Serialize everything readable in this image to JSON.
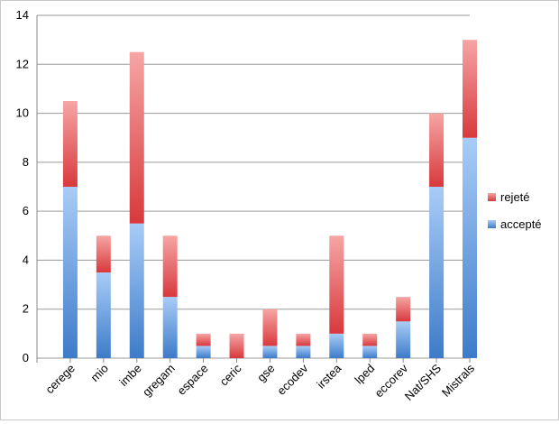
{
  "chart_data": {
    "type": "bar",
    "stacked": true,
    "title": "",
    "xlabel": "",
    "ylabel": "",
    "ylim": [
      0,
      14
    ],
    "yticks": [
      0,
      2,
      4,
      6,
      8,
      10,
      12,
      14
    ],
    "grid": true,
    "legend_position": "right",
    "categories": [
      "cerege",
      "mio",
      "imbe",
      "gregam",
      "espace",
      "ceric",
      "gse",
      "ecodev",
      "irstea",
      "lped",
      "eccorev",
      "Nat/SHS",
      "Mistrals"
    ],
    "series": [
      {
        "name": "accepté",
        "values": [
          7,
          3.5,
          5.5,
          2.5,
          0.5,
          0,
          0.5,
          0.5,
          1,
          0.5,
          1.5,
          7,
          9
        ],
        "color_top": "#a9ccf7",
        "color_bottom": "#3d7bc9"
      },
      {
        "name": "rejeté",
        "values": [
          3.5,
          1.5,
          7,
          2.5,
          0.5,
          1,
          1.5,
          0.5,
          4,
          0.5,
          1,
          3,
          4
        ],
        "color_top": "#f6a5a5",
        "color_bottom": "#d8393c"
      }
    ]
  }
}
